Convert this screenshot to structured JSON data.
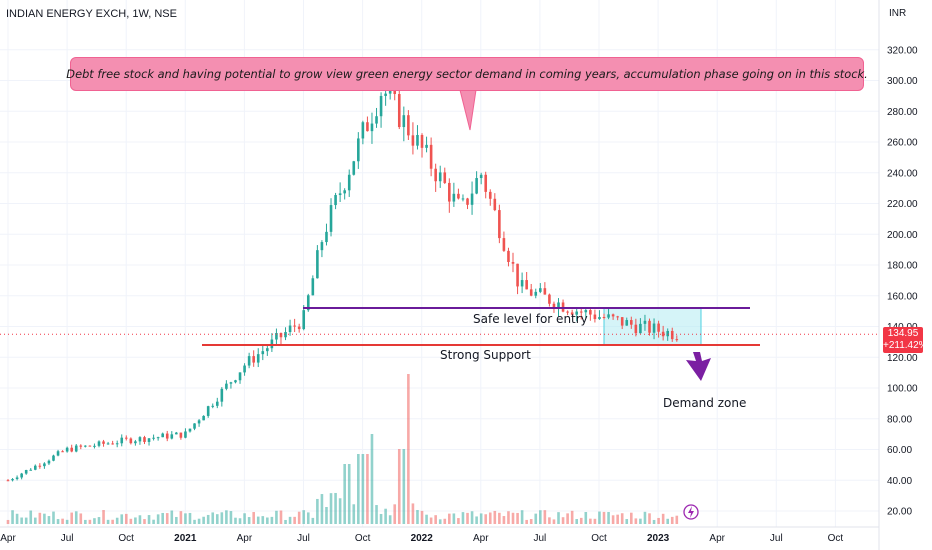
{
  "header": {
    "title": "INDIAN ENERGY EXCH, 1W, NSE",
    "currency": "INR"
  },
  "annotations": {
    "note": "Debt free stock and having potential to grow view green energy sector demand in coming years, accumulation phase going on in this stock.",
    "safe_level_label": "Safe level for entry",
    "support_label": "Strong Support",
    "demand_label": "Demand zone"
  },
  "price_badge": {
    "price": "134.95",
    "change": "+211.42%"
  },
  "colors": {
    "up": "#26a69a",
    "down": "#ef5350",
    "safe_line": "#6a1b9a",
    "support_line": "#e53935",
    "note_bg": "#f48fb1",
    "zone_fill": "#b2ebf2",
    "arrow": "#7b1fa2"
  },
  "chart_data": {
    "type": "candlestick",
    "interval": "1W",
    "y_axis": {
      "ticks": [
        20,
        40,
        60,
        80,
        100,
        120,
        140,
        160,
        180,
        200,
        220,
        240,
        260,
        280,
        300,
        320
      ],
      "range": [
        12,
        327
      ],
      "position": "right"
    },
    "x_axis": {
      "labels": [
        "Apr",
        "Jul",
        "Oct",
        "2021",
        "Apr",
        "Jul",
        "Oct",
        "2022",
        "Apr",
        "Jul",
        "Oct",
        "2023",
        "Apr",
        "Jul",
        "Oct"
      ]
    },
    "key_points": [
      {
        "date": "2020-04",
        "close": 40
      },
      {
        "date": "2020-07",
        "close": 60
      },
      {
        "date": "2020-10",
        "close": 66
      },
      {
        "date": "2021-01",
        "close": 70
      },
      {
        "date": "2021-04",
        "close": 115
      },
      {
        "date": "2021-07",
        "close": 145
      },
      {
        "date": "2021-08",
        "close": 200
      },
      {
        "date": "2021-10",
        "close": 265
      },
      {
        "date": "2021-11",
        "close": 295
      },
      {
        "date": "2022-01",
        "close": 255
      },
      {
        "date": "2022-03",
        "close": 215
      },
      {
        "date": "2022-04",
        "close": 240
      },
      {
        "date": "2022-06",
        "close": 165
      },
      {
        "date": "2022-09",
        "close": 150
      },
      {
        "date": "2022-12",
        "close": 140
      },
      {
        "date": "2023-02",
        "close": 134.95
      }
    ],
    "levels": [
      {
        "name": "Safe level for entry",
        "value": 152
      },
      {
        "name": "Strong Support",
        "value": 128
      }
    ],
    "demand_zone": {
      "low": 128,
      "high": 152,
      "from": "2022-10",
      "to": "2023-03"
    },
    "last_price": 134.95,
    "change_percent": 211.42
  }
}
